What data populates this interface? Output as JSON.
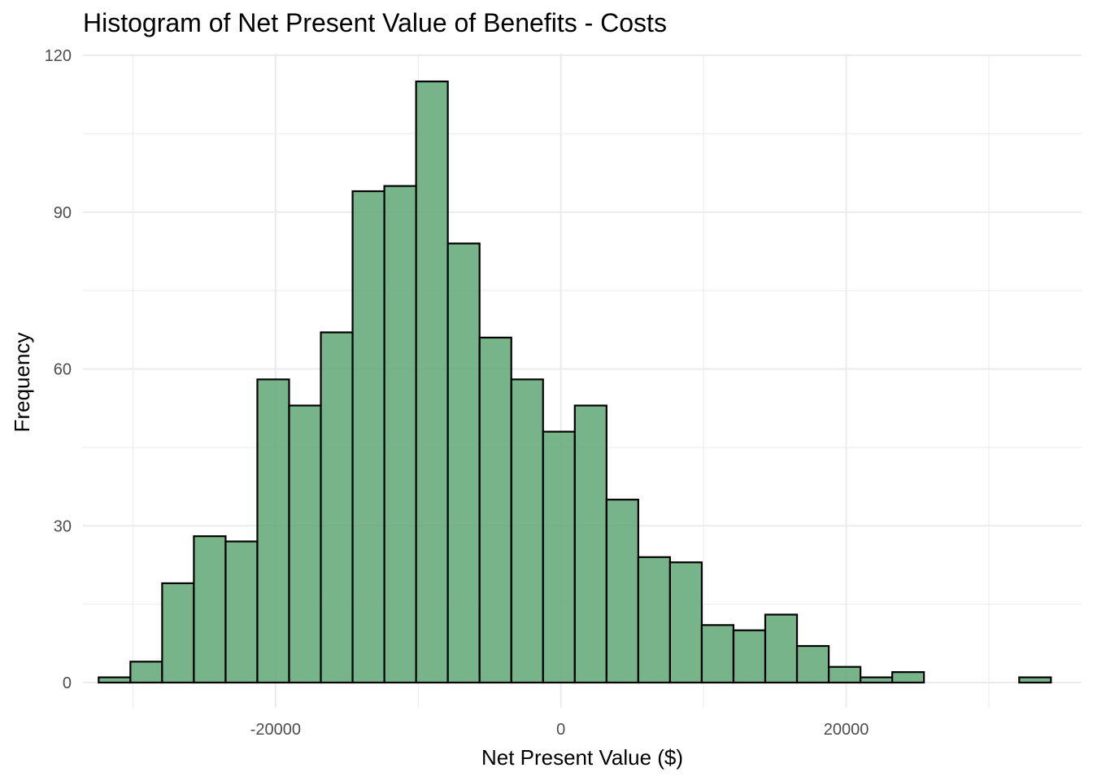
{
  "chart_data": {
    "type": "bar",
    "subtype": "histogram",
    "title": "Histogram of Net Present Value of Benefits - Costs",
    "xlabel": "Net Present Value ($)",
    "ylabel": "Frequency",
    "xlim": [
      -33500,
      36500
    ],
    "ylim": [
      -6,
      120
    ],
    "x_ticks": [
      -20000,
      0,
      20000
    ],
    "x_tick_labels": [
      "-20000",
      "0",
      "20000"
    ],
    "y_ticks": [
      0,
      30,
      60,
      90,
      120
    ],
    "y_tick_labels": [
      "0",
      "30",
      "60",
      "90",
      "120"
    ],
    "grid": true,
    "legend": "none",
    "bar_fill": "#60a774",
    "bar_outline": "#000000",
    "bins": [
      {
        "start": -32400,
        "end": -30175,
        "count": 1
      },
      {
        "start": -30175,
        "end": -27950,
        "count": 4
      },
      {
        "start": -27950,
        "end": -25725,
        "count": 19
      },
      {
        "start": -25725,
        "end": -23500,
        "count": 28
      },
      {
        "start": -23500,
        "end": -21275,
        "count": 27
      },
      {
        "start": -21275,
        "end": -19050,
        "count": 58
      },
      {
        "start": -19050,
        "end": -16825,
        "count": 53
      },
      {
        "start": -16825,
        "end": -14600,
        "count": 67
      },
      {
        "start": -14600,
        "end": -12375,
        "count": 94
      },
      {
        "start": -12375,
        "end": -10150,
        "count": 95
      },
      {
        "start": -10150,
        "end": -7925,
        "count": 115
      },
      {
        "start": -7925,
        "end": -5700,
        "count": 84
      },
      {
        "start": -5700,
        "end": -3475,
        "count": 66
      },
      {
        "start": -3475,
        "end": -1250,
        "count": 58
      },
      {
        "start": -1250,
        "end": 975,
        "count": 48
      },
      {
        "start": 975,
        "end": 3200,
        "count": 53
      },
      {
        "start": 3200,
        "end": 5425,
        "count": 35
      },
      {
        "start": 5425,
        "end": 7650,
        "count": 24
      },
      {
        "start": 7650,
        "end": 9875,
        "count": 23
      },
      {
        "start": 9875,
        "end": 12100,
        "count": 11
      },
      {
        "start": 12100,
        "end": 14325,
        "count": 10
      },
      {
        "start": 14325,
        "end": 16550,
        "count": 13
      },
      {
        "start": 16550,
        "end": 18775,
        "count": 7
      },
      {
        "start": 18775,
        "end": 21000,
        "count": 3
      },
      {
        "start": 21000,
        "end": 23225,
        "count": 1
      },
      {
        "start": 23225,
        "end": 25450,
        "count": 2
      },
      {
        "start": 25450,
        "end": 27675,
        "count": 0
      },
      {
        "start": 27675,
        "end": 29900,
        "count": 0
      },
      {
        "start": 29900,
        "end": 32125,
        "count": 0
      },
      {
        "start": 32125,
        "end": 34350,
        "count": 1
      }
    ]
  }
}
